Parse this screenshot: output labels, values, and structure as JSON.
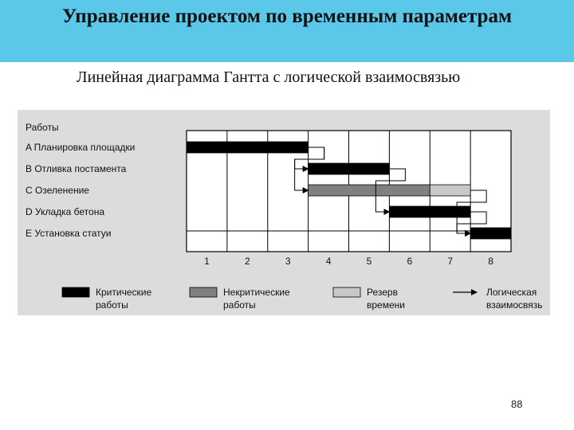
{
  "slide": {
    "title": "Управление проектом по временным параметрам",
    "subtitle": "Линейная диаграмма Гантта с логической взаимосвязью",
    "page_number": "88"
  },
  "colors": {
    "header_background": "#5bc8ea",
    "figure_background": "#dcdcdc",
    "critical": "#000000",
    "noncritical": "#808080",
    "slack": "#c8c8c8"
  },
  "chart_data": {
    "type": "gantt",
    "title": "",
    "ylabel": "Работы",
    "xlabel": "",
    "periods": [
      "1",
      "2",
      "3",
      "4",
      "5",
      "6",
      "7",
      "8"
    ],
    "xlim": [
      0,
      8
    ],
    "grid": true,
    "tasks": [
      {
        "label": "A Планировка площадки",
        "start": 0,
        "end": 3,
        "kind": "critical"
      },
      {
        "label": "B Отливка постамента",
        "start": 3,
        "end": 5,
        "kind": "critical"
      },
      {
        "label": "C Озеленение",
        "start": 3,
        "end": 6,
        "kind": "noncritical",
        "slack_end": 7
      },
      {
        "label": "D Укладка бетона",
        "start": 5,
        "end": 7,
        "kind": "critical"
      },
      {
        "label": "E Установка статуи",
        "start": 7,
        "end": 8,
        "kind": "critical"
      }
    ],
    "dependencies": [
      {
        "from": 0,
        "to": 1
      },
      {
        "from": 0,
        "to": 2
      },
      {
        "from": 1,
        "to": 3
      },
      {
        "from": 3,
        "to": 4
      },
      {
        "from": 2,
        "to": 4
      }
    ],
    "legend": {
      "position": "bottom",
      "items": [
        {
          "kind": "critical",
          "label_lines": [
            "Критические",
            "работы"
          ]
        },
        {
          "kind": "noncritical",
          "label_lines": [
            "Некритические",
            "работы"
          ]
        },
        {
          "kind": "slack",
          "label_lines": [
            "Резерв",
            "времени"
          ]
        },
        {
          "kind": "arrow",
          "label_lines": [
            "Логическая",
            "взаимосвязь"
          ]
        }
      ]
    }
  }
}
